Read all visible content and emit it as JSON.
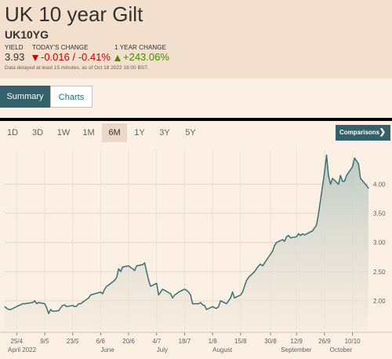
{
  "header": {
    "title": "UK 10 year Gilt",
    "symbol": "UK10YG",
    "yield_label": "YIELD",
    "yield_value": "3.93",
    "change_label": "TODAY'S CHANGE",
    "change_value": "-0.016 / -0.41%",
    "year_label": "1 YEAR CHANGE",
    "year_value": "+243.06%",
    "disclaimer": "Data delayed at least 15 minutes, as of Oct 18 2022 18:00 BST."
  },
  "tabs": [
    {
      "label": "Summary",
      "active": true
    },
    {
      "label": "Charts",
      "active": false
    }
  ],
  "ranges": [
    "1D",
    "3D",
    "1W",
    "1M",
    "6M",
    "1Y",
    "3Y",
    "5Y"
  ],
  "active_range": "6M",
  "comparisons_label": "Comparisons",
  "colors": {
    "accent": "#33606b",
    "negative": "#cc0000",
    "positive": "#458b00",
    "line": "#3b6f73"
  },
  "chart_data": {
    "type": "area",
    "x_ticks": [
      "25/4",
      "9/5",
      "23/5",
      "6/6",
      "20/6",
      "4/7",
      "18/7",
      "1/8",
      "15/8",
      "30/8",
      "12/9",
      "26/9",
      "10/10"
    ],
    "month_labels": [
      "April 2022",
      "June",
      "July",
      "August",
      "September",
      "October"
    ],
    "y_ticks": [
      "2.00",
      "2.50",
      "3.00",
      "3.50",
      "4.00"
    ],
    "ylim": [
      1.5,
      4.6
    ],
    "grid": true,
    "series": [
      {
        "x": [
          "2022-04-19",
          "2022-04-20",
          "2022-04-21",
          "2022-04-22",
          "2022-04-25",
          "2022-04-26",
          "2022-04-27",
          "2022-04-28",
          "2022-04-29",
          "2022-05-03",
          "2022-05-04",
          "2022-05-05",
          "2022-05-06",
          "2022-05-09",
          "2022-05-10",
          "2022-05-11",
          "2022-05-12",
          "2022-05-13",
          "2022-05-16",
          "2022-05-17",
          "2022-05-18",
          "2022-05-19",
          "2022-05-20",
          "2022-05-23",
          "2022-05-24",
          "2022-05-25",
          "2022-05-26",
          "2022-05-27",
          "2022-05-31",
          "2022-06-01",
          "2022-06-06",
          "2022-06-07",
          "2022-06-08",
          "2022-06-09",
          "2022-06-10",
          "2022-06-13",
          "2022-06-14",
          "2022-06-15",
          "2022-06-16",
          "2022-06-17",
          "2022-06-20",
          "2022-06-21",
          "2022-06-22",
          "2022-06-23",
          "2022-06-24",
          "2022-06-27",
          "2022-06-28",
          "2022-06-29",
          "2022-06-30",
          "2022-07-01",
          "2022-07-04",
          "2022-07-05",
          "2022-07-06",
          "2022-07-07",
          "2022-07-08",
          "2022-07-11",
          "2022-07-12",
          "2022-07-13",
          "2022-07-14",
          "2022-07-15",
          "2022-07-18",
          "2022-07-19",
          "2022-07-20",
          "2022-07-21",
          "2022-07-22",
          "2022-07-25",
          "2022-07-26",
          "2022-07-27",
          "2022-07-28",
          "2022-07-29",
          "2022-08-01",
          "2022-08-02",
          "2022-08-03",
          "2022-08-04",
          "2022-08-05",
          "2022-08-08",
          "2022-08-09",
          "2022-08-10",
          "2022-08-11",
          "2022-08-12",
          "2022-08-15",
          "2022-08-16",
          "2022-08-17",
          "2022-08-18",
          "2022-08-19",
          "2022-08-22",
          "2022-08-23",
          "2022-08-24",
          "2022-08-25",
          "2022-08-26",
          "2022-08-30",
          "2022-08-31",
          "2022-09-01",
          "2022-09-02",
          "2022-09-05",
          "2022-09-06",
          "2022-09-07",
          "2022-09-08",
          "2022-09-09",
          "2022-09-12",
          "2022-09-13",
          "2022-09-14",
          "2022-09-15",
          "2022-09-16",
          "2022-09-20",
          "2022-09-21",
          "2022-09-22",
          "2022-09-23",
          "2022-09-26",
          "2022-09-27",
          "2022-09-28",
          "2022-09-29",
          "2022-09-30",
          "2022-10-03",
          "2022-10-04",
          "2022-10-05",
          "2022-10-06",
          "2022-10-07",
          "2022-10-10",
          "2022-10-11",
          "2022-10-12",
          "2022-10-13",
          "2022-10-14",
          "2022-10-17",
          "2022-10-18"
        ],
        "y": [
          1.9,
          1.87,
          1.85,
          1.85,
          1.9,
          1.92,
          1.93,
          1.95,
          1.95,
          1.97,
          2.0,
          1.95,
          1.97,
          1.95,
          1.88,
          1.78,
          1.85,
          1.82,
          1.83,
          1.88,
          1.92,
          1.93,
          1.9,
          1.92,
          1.9,
          1.91,
          1.95,
          1.95,
          2.05,
          2.1,
          2.15,
          2.12,
          2.2,
          2.25,
          2.27,
          2.35,
          2.4,
          2.55,
          2.5,
          2.58,
          2.6,
          2.57,
          2.55,
          2.52,
          2.6,
          2.62,
          2.65,
          2.5,
          2.35,
          2.25,
          2.3,
          2.1,
          2.15,
          2.2,
          2.18,
          2.12,
          2.05,
          2.1,
          2.12,
          2.15,
          2.2,
          2.18,
          2.15,
          2.1,
          1.95,
          1.95,
          1.97,
          1.93,
          1.92,
          1.85,
          1.9,
          1.88,
          1.87,
          1.9,
          2.0,
          1.95,
          2.0,
          2.05,
          2.15,
          2.05,
          2.1,
          2.15,
          2.25,
          2.35,
          2.4,
          2.5,
          2.55,
          2.6,
          2.63,
          2.6,
          2.8,
          2.85,
          2.95,
          3.0,
          3.05,
          3.02,
          3.1,
          3.12,
          3.08,
          3.1,
          3.15,
          3.12,
          3.15,
          3.13,
          3.2,
          3.25,
          3.3,
          3.5,
          4.2,
          4.5,
          4.15,
          4.0,
          4.1,
          4.0,
          4.15,
          4.05,
          4.05,
          4.15,
          4.3,
          4.45,
          4.4,
          4.35,
          4.1,
          3.98,
          3.93
        ]
      }
    ]
  }
}
